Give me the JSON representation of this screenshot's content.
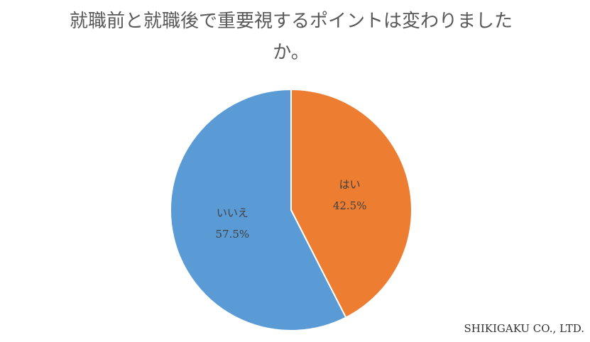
{
  "chart_data": {
    "type": "pie",
    "title": "就職前と就職後で重要視するポイントは変わりましたか。",
    "categories": [
      "はい",
      "いいえ"
    ],
    "values": [
      42.5,
      57.5
    ],
    "value_labels": [
      "42.5%",
      "57.5%"
    ],
    "colors": [
      "#ed7d31",
      "#5b9bd5"
    ]
  },
  "footer": "SHIKIGAKU CO., LTD."
}
